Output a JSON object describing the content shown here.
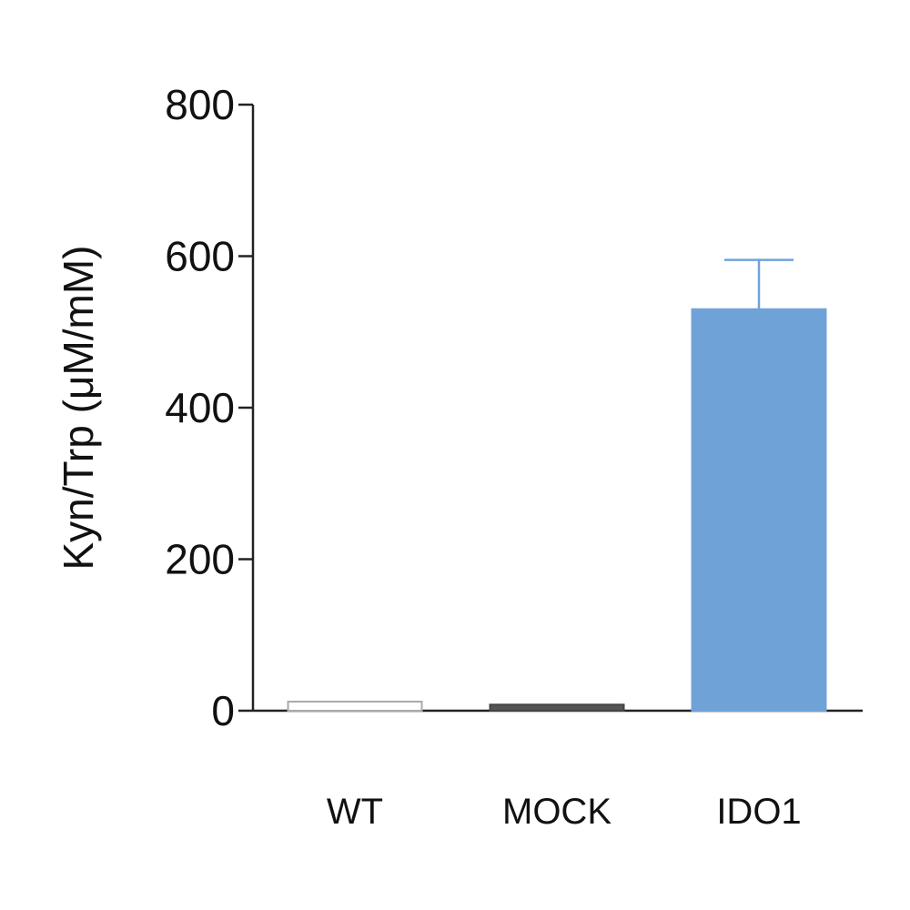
{
  "chart_data": {
    "type": "bar",
    "title": "",
    "xlabel": "",
    "ylabel": "Kyn/Trp (μM/mM)",
    "ylim": [
      0,
      800
    ],
    "yticks": [
      0,
      200,
      400,
      600,
      800
    ],
    "categories": [
      "WT",
      "MOCK",
      "IDO1"
    ],
    "values": [
      12,
      8,
      530
    ],
    "errors": [
      0,
      0,
      65
    ],
    "colors": {
      "WT": {
        "fill": "#ffffff",
        "stroke": "#aaaaaa"
      },
      "MOCK": {
        "fill": "#555555",
        "stroke": "#444444"
      },
      "IDO1": {
        "fill": "#6fa3d8",
        "stroke": "#6fa3d8"
      }
    },
    "axis_color": "#222222",
    "grid": false,
    "legend": "none"
  }
}
